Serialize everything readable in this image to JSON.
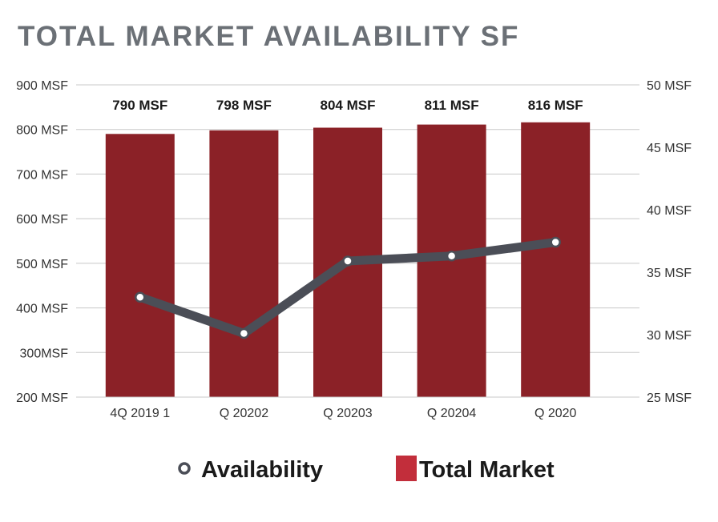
{
  "chart_data": {
    "type": "bar",
    "title": "TOTAL MARKET AVAILABILITY SF",
    "categories": [
      "4Q 2019 1",
      "Q 20202",
      "Q 20203",
      "Q 20204",
      "Q 2020"
    ],
    "y_left": {
      "min": 200,
      "max": 900,
      "step": 100,
      "tick_labels": [
        "200 MSF",
        "300MSF",
        "400 MSF",
        "500 MSF",
        "600 MSF",
        "700 MSF",
        "800 MSF",
        "900 MSF"
      ]
    },
    "y_right": {
      "min": 25,
      "max": 50,
      "step": 5,
      "tick_labels": [
        "25 MSF",
        "30 MSF",
        "35 MSF",
        "40 MSF",
        "45 MSF",
        "50 MSF"
      ]
    },
    "series": [
      {
        "name": "Total Market",
        "kind": "bar",
        "axis": "left",
        "values": [
          790,
          798,
          804,
          811,
          816
        ],
        "data_labels": [
          "790 MSF",
          "798 MSF",
          "804 MSF",
          "811 MSF",
          "816 MSF"
        ],
        "color": "#8b2127"
      },
      {
        "name": "Availability",
        "kind": "line",
        "axis": "right",
        "values": [
          33.0,
          30.1,
          35.9,
          36.3,
          37.4
        ],
        "color": "#4b4e57"
      }
    ],
    "grid": "horizontal",
    "legend_position": "bottom",
    "legend": {
      "availability_label": "Availability",
      "total_market_label": "Total Market",
      "total_market_swatch_color": "#c22e3b"
    },
    "title_color": "#6b7076",
    "grid_color": "#c8c8c8"
  }
}
